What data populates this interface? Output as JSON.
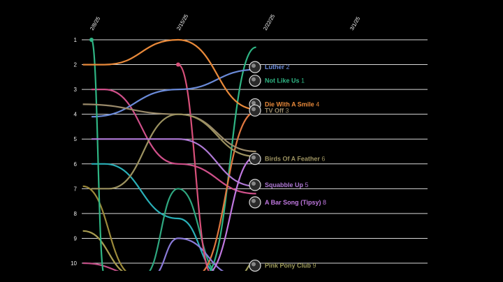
{
  "chart_data": {
    "type": "line",
    "variant": "bump",
    "title": "",
    "xlabel": "",
    "ylabel": "",
    "x_ticks": [
      "2/8/25",
      "2/15/25",
      "2/22/25",
      "3/1/25"
    ],
    "y_ticks": [
      "1",
      "2",
      "3",
      "4",
      "5",
      "6",
      "7",
      "8",
      "9",
      "10"
    ],
    "ylim": [
      1,
      10
    ],
    "y_reversed": true,
    "grid": "horizontal",
    "series": [
      {
        "name": "Luther",
        "rank": "2",
        "color": "#6a8ad8",
        "points": [
          [
            0,
            4.1
          ],
          [
            1,
            3.0
          ],
          [
            1.9,
            2.2
          ]
        ],
        "label_rank": 2.1
      },
      {
        "name": "Not Like Us",
        "rank": "1",
        "color": "#2fb584",
        "points": [
          [
            0,
            1.0
          ],
          [
            0.15,
            10.5
          ]
        ],
        "label_rank": 2.65
      },
      {
        "name": "Die With A Smile",
        "rank": "4",
        "color": "#e8893a",
        "points": [
          [
            -0.1,
            2.0
          ],
          [
            0.15,
            2.0
          ],
          [
            1.0,
            1.0
          ],
          [
            1.9,
            3.8
          ]
        ],
        "label_rank": 3.6
      },
      {
        "name": "TV Off",
        "rank": "3",
        "color": "#9a8a6a",
        "points": [
          [
            -0.1,
            3.6
          ],
          [
            1.0,
            4.0
          ],
          [
            1.9,
            5.5
          ]
        ],
        "label_rank": 3.85
      },
      {
        "name": "Birds Of A Feather",
        "rank": "6",
        "color": "#9c9260",
        "points": [
          [
            0,
            7.0
          ],
          [
            0.2,
            7.0
          ],
          [
            1.0,
            4.0
          ],
          [
            1.9,
            5.7
          ]
        ],
        "label_rank": 5.8
      },
      {
        "name": "Squabble Up",
        "rank": "5",
        "color": "#b07ad6",
        "points": [
          [
            0,
            5.0
          ],
          [
            1.0,
            5.0
          ],
          [
            1.9,
            6.9
          ]
        ],
        "label_rank": 6.85
      },
      {
        "name": "A Bar Song (Tipsy)",
        "rank": "8",
        "color": "#c078e0",
        "points": [
          [
            1.3,
            10.5
          ],
          [
            1.9,
            5.7
          ]
        ],
        "label_rank": 7.55
      },
      {
        "name": "Pink Pony Club",
        "rank": "9",
        "color": "#9c9a58",
        "points": [
          [
            1.7,
            10.5
          ],
          [
            1.9,
            9.9
          ]
        ],
        "label_rank": 10.1
      }
    ],
    "other_lines": [
      {
        "color": "#d0508a",
        "points": [
          [
            0,
            3.0
          ],
          [
            0.15,
            3.0
          ],
          [
            1.0,
            6.0
          ],
          [
            1.9,
            7.2
          ]
        ]
      },
      {
        "color": "#2ab0b8",
        "points": [
          [
            0,
            6.0
          ],
          [
            0.15,
            6.0
          ],
          [
            1.0,
            8.2
          ],
          [
            1.5,
            10.5
          ]
        ]
      },
      {
        "color": "#2fa880",
        "points": [
          [
            0.6,
            10.5
          ],
          [
            1.0,
            7.0
          ],
          [
            1.5,
            10.5
          ]
        ]
      },
      {
        "color": "#2fb584",
        "points": [
          [
            1.3,
            10.5
          ],
          [
            1.9,
            1.3
          ]
        ]
      },
      {
        "color": "#e07840",
        "points": [
          [
            1.2,
            10.5
          ],
          [
            1.9,
            3.9
          ]
        ]
      },
      {
        "color": "#8a7ad8",
        "points": [
          [
            0.7,
            10.5
          ],
          [
            1.0,
            9.0
          ],
          [
            1.7,
            10.5
          ]
        ]
      },
      {
        "color": "#a89c50",
        "points": [
          [
            -0.1,
            8.7
          ],
          [
            0.5,
            10.5
          ]
        ]
      },
      {
        "color": "#9c8a3a",
        "points": [
          [
            -0.1,
            6.9
          ],
          [
            0.5,
            10.5
          ]
        ]
      },
      {
        "color": "#c45088",
        "points": [
          [
            -0.1,
            10.0
          ],
          [
            0.6,
            10.5
          ]
        ]
      },
      {
        "color": "#d8507a",
        "points": [
          [
            1.0,
            2.0
          ],
          [
            1.4,
            10.5
          ]
        ]
      }
    ],
    "markers": [
      {
        "color": "#2fb584",
        "point": [
          0,
          1.0
        ]
      },
      {
        "color": "#d8507a",
        "point": [
          1.0,
          2.0
        ]
      }
    ]
  }
}
